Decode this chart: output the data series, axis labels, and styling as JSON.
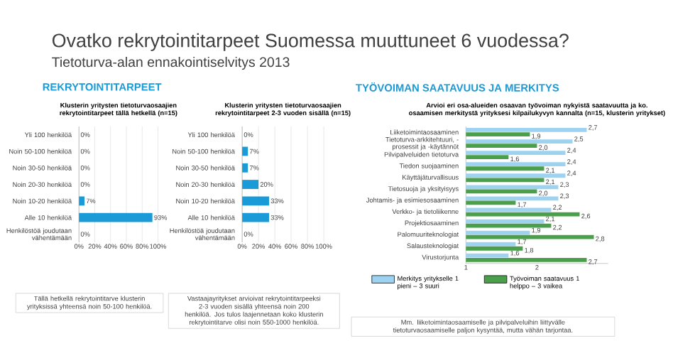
{
  "chart_data": [
    {
      "type": "bar",
      "orientation": "horizontal",
      "title": "Klusterin yritysten tietoturvaosaajien rekrytointitarpeet tällä hetkellä (n=15)",
      "categories": [
        "Yli 100 henkilöä",
        "Noin 50-100 henkilöä",
        "Noin 30-50 henkilöä",
        "Noin 20-30 henkilöä",
        "Noin 10-20 henkilöä",
        "Alle 10 henkilöä",
        "Henkilöstöä joudutaan vähentämään"
      ],
      "values": [
        0,
        0,
        0,
        0,
        7,
        93,
        0
      ],
      "value_labels": [
        "0%",
        "0%",
        "0%",
        "0%",
        "7%",
        "93%",
        "0%"
      ],
      "color": "#1a9ad6",
      "xlim": [
        0,
        100
      ],
      "xticks": [
        {
          "value": 0,
          "label": "0%"
        },
        {
          "value": 20,
          "label": "20%"
        },
        {
          "value": 40,
          "label": "40%"
        },
        {
          "value": 60,
          "label": "60%"
        },
        {
          "value": 80,
          "label": "80%"
        },
        {
          "value": 100,
          "label": "100%"
        }
      ],
      "grid": "x",
      "annotations": [
        "Ovatko rekrytointitarpeet Suomessa muuttuneet 6 vuodessa?",
        "Tietoturva-alan ennakointiselvitys 2013",
        "REKRYTOINTITARPEET",
        "Tällä hetkellä rekrytointitarve klusterin yrityksissä yhteensä noin 50-100 henkilöä."
      ]
    },
    {
      "type": "bar",
      "orientation": "horizontal",
      "title": "Klusterin yritysten tietoturvaosaajien rekrytointitarpeet 2-3 vuoden sisällä (n=15)",
      "categories": [
        "Yli 100 henkilöä",
        "Noin 50-100 henkilöä",
        "Noin 30-50 henkilöä",
        "Noin 20-30 henkilöä",
        "Noin 10-20 henkilöä",
        "Alle 10 henkilöä",
        "Henkilöstöä joudutaan vähentämään"
      ],
      "values": [
        0,
        7,
        7,
        20,
        33,
        33,
        0
      ],
      "value_labels": [
        "0%",
        "7%",
        "7%",
        "20%",
        "33%",
        "33%",
        "0%"
      ],
      "color": "#1a9ad6",
      "xlim": [
        0,
        100
      ],
      "xticks": [
        {
          "value": 0,
          "label": "0%"
        },
        {
          "value": 20,
          "label": "20%"
        },
        {
          "value": 40,
          "label": "40%"
        },
        {
          "value": 60,
          "label": "60%"
        },
        {
          "value": 80,
          "label": "80%"
        },
        {
          "value": 100,
          "label": "100%"
        }
      ],
      "grid": "x",
      "annotations": [
        "Vastaajayritykset arvioivat rekrytointitarpeeksi 2-3 vuoden sisällä yhteensä noin 200 henkilöä. Jos tulos laajennetaan koko klusterin rekrytointitarve olisi noin 550-1000 henkilöä."
      ]
    },
    {
      "type": "bar",
      "orientation": "horizontal",
      "title": "Arvioi eri osa-alueiden osaavan työvoiman nykyistä saatavuutta ja ko. osaamisen merkitystä yrityksesi kilpailukyvyn kannalta (n=15, klusterin yritykset)",
      "categories": [
        "Liiketoimintaosaaminen",
        "Tietoturva-arkkitehtuuri, -prosessit ja -käytännöt",
        "Pilvipalveluiden tietoturva",
        "Tiedon suojaaminen",
        "Käyttäjäturvallisuus",
        "Tietosuoja ja yksityisyys",
        "Johtamis- ja esimiesosaaminen",
        "Verkko- ja tietoliikenne",
        "Projektiosaaminen",
        "Palomuuriteknologiat",
        "Salausteknologiat",
        "Virustorjunta"
      ],
      "series": [
        {
          "name": "Merkitys yritykselle 1 pieni – 3 suuri",
          "color": "#9dd3f0",
          "values": [
            2.7,
            2.5,
            2.4,
            2.4,
            2.4,
            2.3,
            2.3,
            2.2,
            2.1,
            1.9,
            1.7,
            1.6
          ],
          "value_labels": [
            "2,7",
            "2,5",
            "2,4",
            "2,4",
            "2,4",
            "2,3",
            "2,3",
            "2,2",
            "2,1",
            "1,9",
            "1,7",
            "1,6"
          ]
        },
        {
          "name": "Työvoiman saatavuus 1 helppo – 3 vaikea",
          "color": "#4aa04a",
          "values": [
            1.9,
            2.0,
            1.6,
            2.1,
            2.1,
            2.0,
            1.7,
            2.6,
            2.2,
            2.8,
            1.8,
            2.7
          ],
          "value_labels": [
            "1,9",
            "2,0",
            "1,6",
            "2,1",
            "2,1",
            "2,0",
            "1,7",
            "2,6",
            "2,2",
            "2,8",
            "1,8",
            "2,7"
          ]
        }
      ],
      "xlim": [
        1,
        3
      ],
      "xticks": [
        1,
        2
      ],
      "legend": "bottom",
      "annotations": [
        "TYÖVOIMAN SAATAVUUS JA MERKITYS",
        "Mm. liiketoimintaosaamiselle ja pilvipalveluihin liittyvälle tietoturvaosaamiselle paljon kysyntää, mutta vähän tarjontaa."
      ]
    }
  ]
}
